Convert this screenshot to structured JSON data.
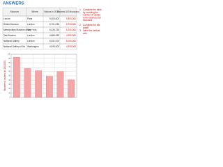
{
  "header": {
    "title": "ANSWERS"
  },
  "table": {
    "columns": [
      "Museum",
      "Where",
      "Visitors in 2013",
      "Nearest 100 thousand"
    ],
    "rows": [
      [
        "Louvre",
        "Paris",
        "9,300,000",
        "9,300,000"
      ],
      [
        "British Museum",
        "London",
        "6,701,036",
        "6,700,000"
      ],
      [
        "Metropolitan Museum of Art",
        "New York",
        "6,226,726",
        "6,200,000"
      ],
      [
        "Tate Modern",
        "London",
        "4,884,939",
        "4,900,000"
      ],
      [
        "National Gallery",
        "London",
        "6,031,574",
        "6,000,000"
      ],
      [
        "National Gallery of Art",
        "Washington",
        "4,093,000",
        "4,100,000"
      ]
    ]
  },
  "instructions": [
    {
      "number": "1",
      "text": "Complete the table by rounding the number of visitors to the nearest 100 thousand"
    },
    {
      "number": "2",
      "text": "Complete the bar graph"
    },
    {
      "number": "3",
      "text": "Label the vertical axis"
    }
  ],
  "chart_data": {
    "type": "bar",
    "y_label": "Number of visitors (in 100,000)",
    "categories": [
      null,
      null,
      null,
      null,
      null,
      null
    ],
    "values": [
      93,
      67,
      62,
      49,
      60,
      41
    ],
    "color": "#f4a6a6",
    "ylim": [
      0,
      100
    ],
    "yticks": [
      0,
      10,
      20,
      30,
      40,
      50,
      60,
      70,
      80,
      90,
      100
    ],
    "grid": true
  }
}
